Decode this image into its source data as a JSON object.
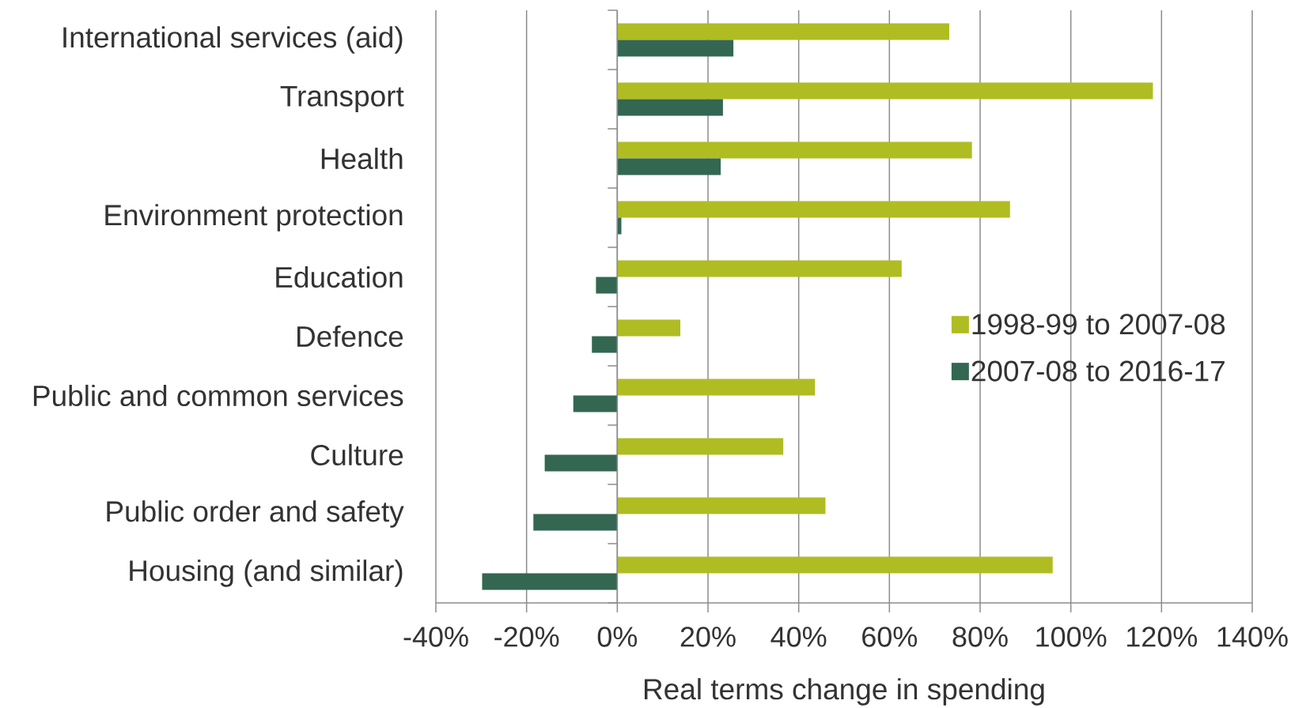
{
  "chart_data": {
    "type": "bar",
    "orientation": "horizontal",
    "xlabel": "Real terms change in spending",
    "categories": [
      "International services (aid)",
      "Transport",
      "Health",
      "Environment protection",
      "Education",
      "Defence",
      "Public and common services",
      "Culture",
      "Public order and safety",
      "Housing (and similar)"
    ],
    "series": [
      {
        "name": "1998-99 to 2007-08",
        "color": "#afbd22",
        "values": [
          73.2,
          118.1,
          78.2,
          86.6,
          62.7,
          13.9,
          43.6,
          36.6,
          45.9,
          96.0
        ]
      },
      {
        "name": "2007-08 to 2016-17",
        "color": "#336751",
        "values": [
          25.6,
          23.3,
          22.8,
          0.9,
          -4.7,
          -5.6,
          -9.7,
          -16.0,
          -18.5,
          -29.8
        ]
      }
    ],
    "xlim": [
      -40,
      140
    ],
    "xticks": [
      {
        "value": -40,
        "label": "-40%"
      },
      {
        "value": -20,
        "label": "-20%"
      },
      {
        "value": 0,
        "label": "0%"
      },
      {
        "value": 20,
        "label": "20%"
      },
      {
        "value": 40,
        "label": "40%"
      },
      {
        "value": 60,
        "label": "60%"
      },
      {
        "value": 80,
        "label": "80%"
      },
      {
        "value": 100,
        "label": "100%"
      },
      {
        "value": 120,
        "label": "120%"
      },
      {
        "value": 140,
        "label": "140%"
      }
    ],
    "grid": "x",
    "legend": "right"
  }
}
